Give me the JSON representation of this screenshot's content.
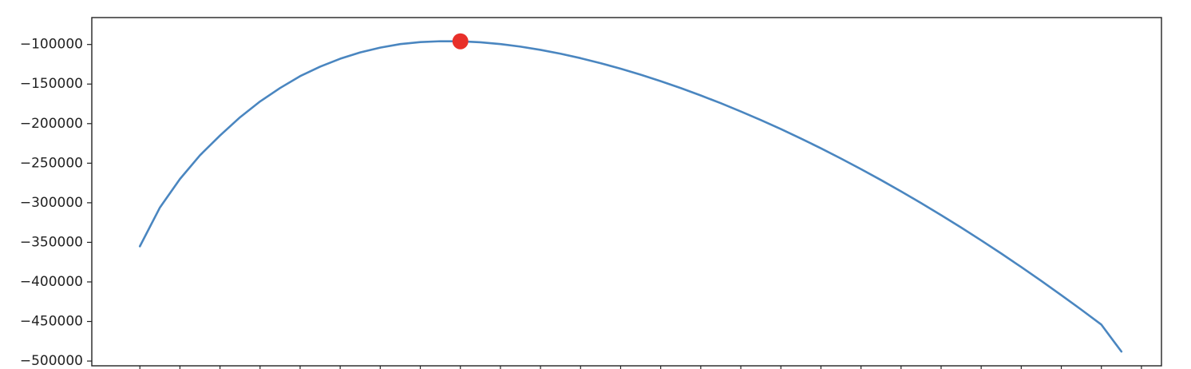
{
  "chart_data": {
    "type": "line",
    "title": "",
    "xlabel": "",
    "ylabel": "",
    "xlim": [
      -1.2,
      25.5
    ],
    "ylim": [
      -506000,
      -66000
    ],
    "y_ticks": [
      -100000,
      -150000,
      -200000,
      -250000,
      -300000,
      -350000,
      -400000,
      -450000,
      -500000
    ],
    "y_tick_labels": [
      "−100000",
      "−150000",
      "−200000",
      "−250000",
      "−300000",
      "−350000",
      "−400000",
      "−450000",
      "−500000"
    ],
    "x_minor_ticks": [
      0,
      1,
      2,
      3,
      4,
      5,
      6,
      7,
      8,
      9,
      10,
      11,
      12,
      13,
      14,
      15,
      16,
      17,
      18,
      19,
      20,
      21,
      22,
      23,
      24,
      25
    ],
    "grid": false,
    "series": [
      {
        "color": "#4a86c0",
        "x": [
          0,
          0.5,
          1,
          1.5,
          2,
          2.5,
          3,
          3.5,
          4,
          4.5,
          5,
          5.5,
          6,
          6.5,
          7,
          7.5,
          8,
          8.5,
          9,
          9.5,
          10,
          10.5,
          11,
          11.5,
          12,
          12.5,
          13,
          13.5,
          14,
          14.5,
          15,
          15.5,
          16,
          16.5,
          17,
          17.5,
          18,
          18.5,
          19,
          19.5,
          20,
          20.5,
          21,
          21.5,
          22,
          22.5,
          23,
          23.5,
          24,
          24.5
        ],
        "y": [
          -355000,
          -306000,
          -270000,
          -240000,
          -215000,
          -192000,
          -172000,
          -155000,
          -140000,
          -128000,
          -118000,
          -110000,
          -104000,
          -99500,
          -97000,
          -95900,
          -96000,
          -97200,
          -99500,
          -102700,
          -106800,
          -111700,
          -117300,
          -123600,
          -130600,
          -138200,
          -146400,
          -155100,
          -164400,
          -174200,
          -184600,
          -195500,
          -206900,
          -218800,
          -231200,
          -244100,
          -257500,
          -271300,
          -285600,
          -300400,
          -315600,
          -331300,
          -347500,
          -364100,
          -381200,
          -398700,
          -416700,
          -435100,
          -454000,
          -488000
        ]
      }
    ],
    "highlight_point": {
      "x": 8,
      "y": -96000,
      "color": "#e8302a"
    }
  }
}
